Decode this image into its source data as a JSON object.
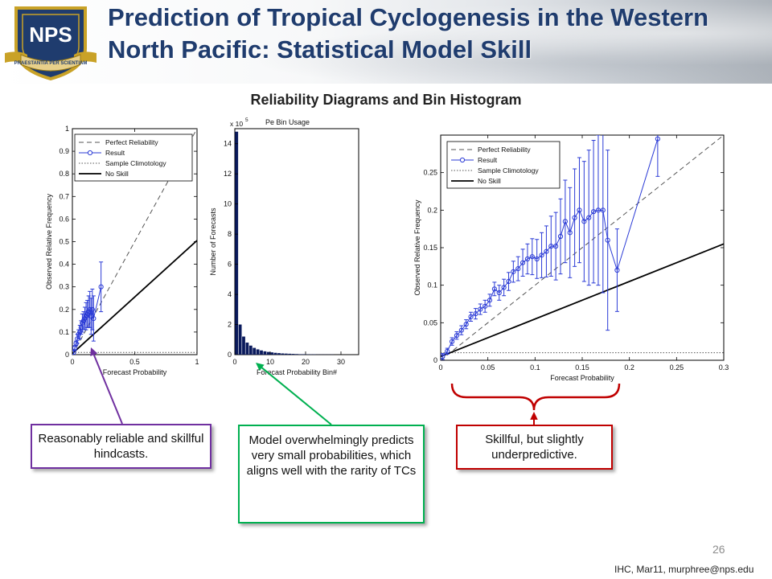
{
  "slide": {
    "title": "Prediction of Tropical Cyclogenesis in the Western North Pacific: Statistical Model Skill",
    "subtitle": "Reliability Diagrams and Bin Histogram",
    "logo_text": "NPS",
    "logo_motto": "PRAESTANTIA PER SCIENTIAM",
    "page_number": "26",
    "footer": "IHC, Mar11, murphree@nps.edu"
  },
  "callouts": {
    "left": "Reasonably reliable and skillful hindcasts.",
    "middle": "Model overwhelmingly predicts very small probabilities, which aligns well with the rarity of TCs",
    "right": "Skillful, but slightly underpredictive."
  },
  "colors": {
    "title": "#1f3c6e",
    "purple": "#7030a0",
    "green": "#00b050",
    "red": "#c00000",
    "series": "#2b3bd6",
    "bar": "#0a1a5c"
  },
  "chart_data": [
    {
      "type": "line",
      "xlabel": "Forecast Probability",
      "ylabel": "Observed Relative Frequency",
      "xlim": [
        0,
        1
      ],
      "ylim": [
        0,
        1
      ],
      "xticks": [
        "0",
        "0.5",
        "1"
      ],
      "yticks": [
        "0",
        "0.1",
        "0.2",
        "0.3",
        "0.4",
        "0.5",
        "0.6",
        "0.7",
        "0.8",
        "0.9",
        "1"
      ],
      "legend": [
        "Perfect Reliability",
        "Result",
        "Sample Climotology",
        "No Skill"
      ],
      "legend_position": "top-left",
      "climatology": 0.01,
      "no_skill": [
        [
          0,
          0.005
        ],
        [
          1,
          0.505
        ]
      ],
      "series": [
        {
          "name": "Result",
          "x": [
            0.01,
            0.02,
            0.03,
            0.04,
            0.05,
            0.06,
            0.07,
            0.08,
            0.09,
            0.1,
            0.11,
            0.12,
            0.13,
            0.14,
            0.15,
            0.16,
            0.17,
            0.23
          ],
          "y": [
            0.01,
            0.03,
            0.05,
            0.07,
            0.09,
            0.1,
            0.12,
            0.14,
            0.15,
            0.16,
            0.17,
            0.18,
            0.19,
            0.2,
            0.17,
            0.2,
            0.16,
            0.3
          ],
          "err": [
            0.01,
            0.01,
            0.01,
            0.02,
            0.02,
            0.03,
            0.03,
            0.04,
            0.04,
            0.05,
            0.06,
            0.06,
            0.07,
            0.08,
            0.08,
            0.09,
            0.1,
            0.11
          ]
        }
      ]
    },
    {
      "type": "bar",
      "title": "Pe Bin Usage",
      "xlabel": "Forecast Probability Bin#",
      "ylabel": "Number of Forecasts",
      "y_multiplier": "x 10^5",
      "xlim": [
        0,
        35
      ],
      "ylim": [
        0,
        15
      ],
      "xticks": [
        "0",
        "10",
        "20",
        "30"
      ],
      "yticks": [
        "0",
        "2",
        "4",
        "6",
        "8",
        "10",
        "12",
        "14"
      ],
      "values": [
        14.8,
        2.0,
        1.2,
        0.8,
        0.6,
        0.45,
        0.35,
        0.28,
        0.22,
        0.18,
        0.15,
        0.12,
        0.1,
        0.08,
        0.07,
        0.06,
        0.05,
        0.04,
        0.03,
        0.03,
        0.02,
        0.02,
        0.02,
        0.01,
        0.01,
        0.01,
        0.01,
        0.01
      ]
    },
    {
      "type": "line",
      "xlabel": "Forecast Probability",
      "ylabel": "Observed Relative Frequency",
      "xlim": [
        0,
        0.3
      ],
      "ylim": [
        0,
        0.3
      ],
      "xticks": [
        "0",
        "0.05",
        "0.1",
        "0.15",
        "0.2",
        "0.25",
        "0.3"
      ],
      "yticks": [
        "0",
        "0.05",
        "0.1",
        "0.15",
        "0.2",
        "0.25"
      ],
      "legend": [
        "Perfect Reliability",
        "Result",
        "Sample Climotology",
        "No Skill"
      ],
      "legend_position": "top-left",
      "climatology": 0.01,
      "no_skill": [
        [
          0,
          0.005
        ],
        [
          0.3,
          0.155
        ]
      ],
      "series": [
        {
          "name": "Result",
          "x": [
            0.002,
            0.007,
            0.012,
            0.017,
            0.022,
            0.027,
            0.032,
            0.037,
            0.042,
            0.047,
            0.052,
            0.057,
            0.062,
            0.067,
            0.072,
            0.077,
            0.082,
            0.087,
            0.092,
            0.097,
            0.102,
            0.107,
            0.112,
            0.117,
            0.122,
            0.127,
            0.132,
            0.137,
            0.142,
            0.147,
            0.152,
            0.157,
            0.162,
            0.167,
            0.172,
            0.177,
            0.187,
            0.23
          ],
          "y": [
            0.005,
            0.012,
            0.025,
            0.033,
            0.04,
            0.048,
            0.058,
            0.062,
            0.068,
            0.072,
            0.08,
            0.095,
            0.09,
            0.097,
            0.105,
            0.118,
            0.122,
            0.13,
            0.135,
            0.138,
            0.135,
            0.14,
            0.145,
            0.152,
            0.152,
            0.165,
            0.185,
            0.17,
            0.19,
            0.2,
            0.185,
            0.19,
            0.198,
            0.2,
            0.2,
            0.16,
            0.12,
            0.295
          ],
          "err": [
            0.004,
            0.004,
            0.005,
            0.005,
            0.006,
            0.006,
            0.006,
            0.007,
            0.007,
            0.008,
            0.008,
            0.009,
            0.01,
            0.011,
            0.012,
            0.014,
            0.016,
            0.018,
            0.02,
            0.024,
            0.026,
            0.03,
            0.034,
            0.04,
            0.045,
            0.05,
            0.055,
            0.06,
            0.065,
            0.07,
            0.08,
            0.09,
            0.095,
            0.1,
            0.11,
            0.12,
            0.055,
            0.05
          ]
        }
      ]
    }
  ]
}
